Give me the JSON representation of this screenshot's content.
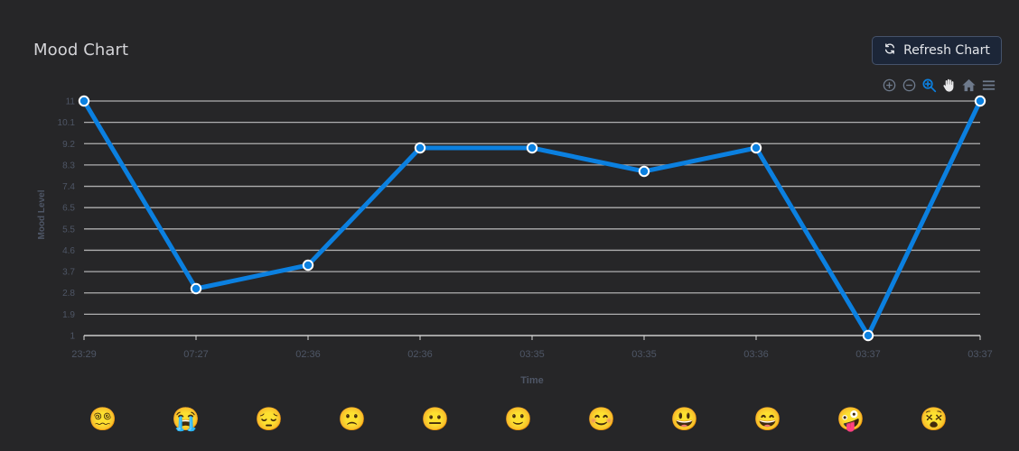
{
  "header": {
    "title": "Mood Chart",
    "refresh_label": "Refresh Chart",
    "refresh_icon": "refresh-icon"
  },
  "toolbar": {
    "icons": [
      "zoom-in-icon",
      "zoom-out-icon",
      "selection-zoom-icon",
      "pan-hand-icon",
      "reset-home-icon",
      "menu-icon"
    ],
    "active": "selection-zoom-icon"
  },
  "colors": {
    "background": "#262628",
    "line": "#0b80e0",
    "grid": "#c8c8c8",
    "axis_text": "#4e5666",
    "title": "#d4d4d8",
    "active_tool": "#0b80e0",
    "tool": "#6e7a8c"
  },
  "emojis": [
    "😵‍💫",
    "😭",
    "😔",
    "🙁",
    "😐",
    "🙂",
    "😊",
    "😃",
    "😄",
    "🤪",
    "😵"
  ],
  "chart_data": {
    "type": "line",
    "title": "Mood Chart",
    "xlabel": "Time",
    "ylabel": "Mood Level",
    "categories": [
      "23:29",
      "07:27",
      "02:36",
      "02:36",
      "03:35",
      "03:35",
      "03:36",
      "03:37",
      "03:37"
    ],
    "series": [
      {
        "name": "Mood Level",
        "values": [
          11,
          3,
          4,
          9,
          9,
          8,
          9,
          1,
          11
        ]
      }
    ],
    "ylim": [
      1,
      11
    ],
    "yticks": [
      "1",
      "1.9",
      "2.8",
      "3.7",
      "4.6",
      "5.5",
      "6.5",
      "7.4",
      "8.3",
      "9.2",
      "10.1",
      "11"
    ],
    "grid": true,
    "legend": "none"
  }
}
